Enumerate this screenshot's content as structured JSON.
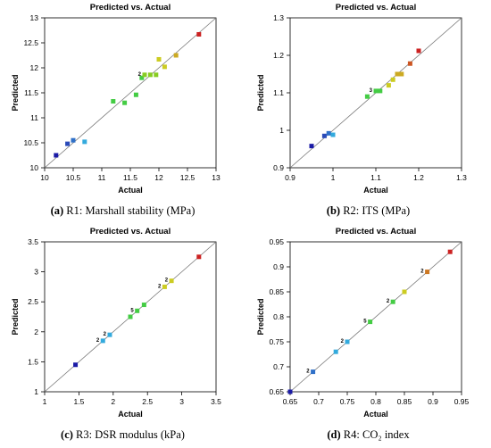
{
  "chart_data": [
    {
      "type": "scatter",
      "title": "Predicted vs. Actual",
      "xlabel": "Actual",
      "ylabel": "Predicted",
      "caption_letter": "(a)",
      "caption_text": "R1: Marshall stability (MPa)",
      "xlim": [
        10,
        13
      ],
      "ylim": [
        10,
        13
      ],
      "xticks": [
        "10",
        "10.5",
        "11",
        "11.5",
        "12",
        "12.5",
        "13"
      ],
      "yticks": [
        "10",
        "10.5",
        "11",
        "11.5",
        "12",
        "12.5",
        "13"
      ],
      "points": [
        {
          "x": 10.2,
          "y": 10.25,
          "color": "#1a1aa6"
        },
        {
          "x": 10.4,
          "y": 10.48,
          "color": "#2a4ab8"
        },
        {
          "x": 10.5,
          "y": 10.55,
          "color": "#2f70c8"
        },
        {
          "x": 10.7,
          "y": 10.52,
          "color": "#33aadd"
        },
        {
          "x": 11.2,
          "y": 11.33,
          "color": "#44cc44"
        },
        {
          "x": 11.4,
          "y": 11.3,
          "color": "#44cc44"
        },
        {
          "x": 11.6,
          "y": 11.46,
          "color": "#44cc44"
        },
        {
          "x": 11.7,
          "y": 11.8,
          "color": "#44cc44"
        },
        {
          "x": 11.75,
          "y": 11.86,
          "color": "#88cc22",
          "label": "2"
        },
        {
          "x": 11.85,
          "y": 11.86,
          "color": "#88cc22"
        },
        {
          "x": 11.95,
          "y": 11.86,
          "color": "#88cc22"
        },
        {
          "x": 12.0,
          "y": 12.17,
          "color": "#cccc22"
        },
        {
          "x": 12.1,
          "y": 12.02,
          "color": "#cccc22"
        },
        {
          "x": 12.3,
          "y": 12.25,
          "color": "#ccaa22"
        },
        {
          "x": 12.7,
          "y": 12.67,
          "color": "#cc2222"
        }
      ]
    },
    {
      "type": "scatter",
      "title": "Predicted vs. Actual",
      "xlabel": "Actual",
      "ylabel": "Predicted",
      "caption_letter": "(b)",
      "caption_text": "R2: ITS (MPa)",
      "xlim": [
        0.9,
        1.3
      ],
      "ylim": [
        0.9,
        1.3
      ],
      "xticks": [
        "0.9",
        "1",
        "1.1",
        "1.2",
        "1.3"
      ],
      "yticks": [
        "0.9",
        "1",
        "1.1",
        "1.2",
        "1.3"
      ],
      "points": [
        {
          "x": 0.95,
          "y": 0.958,
          "color": "#1a1aa6"
        },
        {
          "x": 0.98,
          "y": 0.985,
          "color": "#2a4ab8"
        },
        {
          "x": 0.99,
          "y": 0.992,
          "color": "#2f70c8"
        },
        {
          "x": 1.0,
          "y": 0.988,
          "color": "#33aadd"
        },
        {
          "x": 1.08,
          "y": 1.09,
          "color": "#44cc44"
        },
        {
          "x": 1.1,
          "y": 1.105,
          "color": "#44cc44",
          "label": "3"
        },
        {
          "x": 1.11,
          "y": 1.105,
          "color": "#44cc44"
        },
        {
          "x": 1.13,
          "y": 1.12,
          "color": "#cccc22"
        },
        {
          "x": 1.14,
          "y": 1.135,
          "color": "#cccc22"
        },
        {
          "x": 1.15,
          "y": 1.15,
          "color": "#ccaa22"
        },
        {
          "x": 1.16,
          "y": 1.15,
          "color": "#ccaa22"
        },
        {
          "x": 1.18,
          "y": 1.178,
          "color": "#cc5522"
        },
        {
          "x": 1.2,
          "y": 1.212,
          "color": "#cc2222"
        }
      ]
    },
    {
      "type": "scatter",
      "title": "Predicted vs. Actual",
      "xlabel": "Actual",
      "ylabel": "Predicted",
      "caption_letter": "(c)",
      "caption_text": "R3: DSR modulus (kPa)",
      "xlim": [
        1,
        3.5
      ],
      "ylim": [
        1,
        3.5
      ],
      "xticks": [
        "1",
        "1.5",
        "2",
        "2.5",
        "3",
        "3.5"
      ],
      "yticks": [
        "1",
        "1.5",
        "2",
        "2.5",
        "3",
        "3.5"
      ],
      "points": [
        {
          "x": 1.45,
          "y": 1.45,
          "color": "#1a1aa6"
        },
        {
          "x": 1.85,
          "y": 1.85,
          "color": "#33aadd",
          "label": "2"
        },
        {
          "x": 1.95,
          "y": 1.95,
          "color": "#33aadd",
          "label": "2"
        },
        {
          "x": 2.25,
          "y": 2.25,
          "color": "#44cc44"
        },
        {
          "x": 2.35,
          "y": 2.35,
          "color": "#44cc44",
          "label": "5"
        },
        {
          "x": 2.45,
          "y": 2.45,
          "color": "#44cc44"
        },
        {
          "x": 2.75,
          "y": 2.75,
          "color": "#cccc22",
          "label": "2"
        },
        {
          "x": 2.85,
          "y": 2.85,
          "color": "#cccc22",
          "label": "2"
        },
        {
          "x": 3.25,
          "y": 3.25,
          "color": "#cc2222"
        }
      ]
    },
    {
      "type": "scatter",
      "title": "Predicted vs. Actual",
      "xlabel": "Actual",
      "ylabel": "Predicted",
      "caption_letter": "(d)",
      "caption_text": "R4: CO₂ index",
      "xlim": [
        0.65,
        0.95
      ],
      "ylim": [
        0.65,
        0.95
      ],
      "xticks": [
        "0.65",
        "0.7",
        "0.75",
        "0.8",
        "0.85",
        "0.9",
        "0.95"
      ],
      "yticks": [
        "0.65",
        "0.7",
        "0.75",
        "0.8",
        "0.85",
        "0.9",
        "0.95"
      ],
      "points": [
        {
          "x": 0.65,
          "y": 0.65,
          "color": "#1a1aa6"
        },
        {
          "x": 0.69,
          "y": 0.69,
          "color": "#2f70c8",
          "label": "2"
        },
        {
          "x": 0.73,
          "y": 0.73,
          "color": "#33aadd"
        },
        {
          "x": 0.75,
          "y": 0.75,
          "color": "#33aadd",
          "label": "2"
        },
        {
          "x": 0.79,
          "y": 0.79,
          "color": "#44cc44",
          "label": "5"
        },
        {
          "x": 0.83,
          "y": 0.83,
          "color": "#44cc44",
          "label": "2"
        },
        {
          "x": 0.85,
          "y": 0.85,
          "color": "#cccc22"
        },
        {
          "x": 0.89,
          "y": 0.89,
          "color": "#cc7722",
          "label": "2"
        },
        {
          "x": 0.93,
          "y": 0.93,
          "color": "#cc2222"
        }
      ]
    }
  ]
}
